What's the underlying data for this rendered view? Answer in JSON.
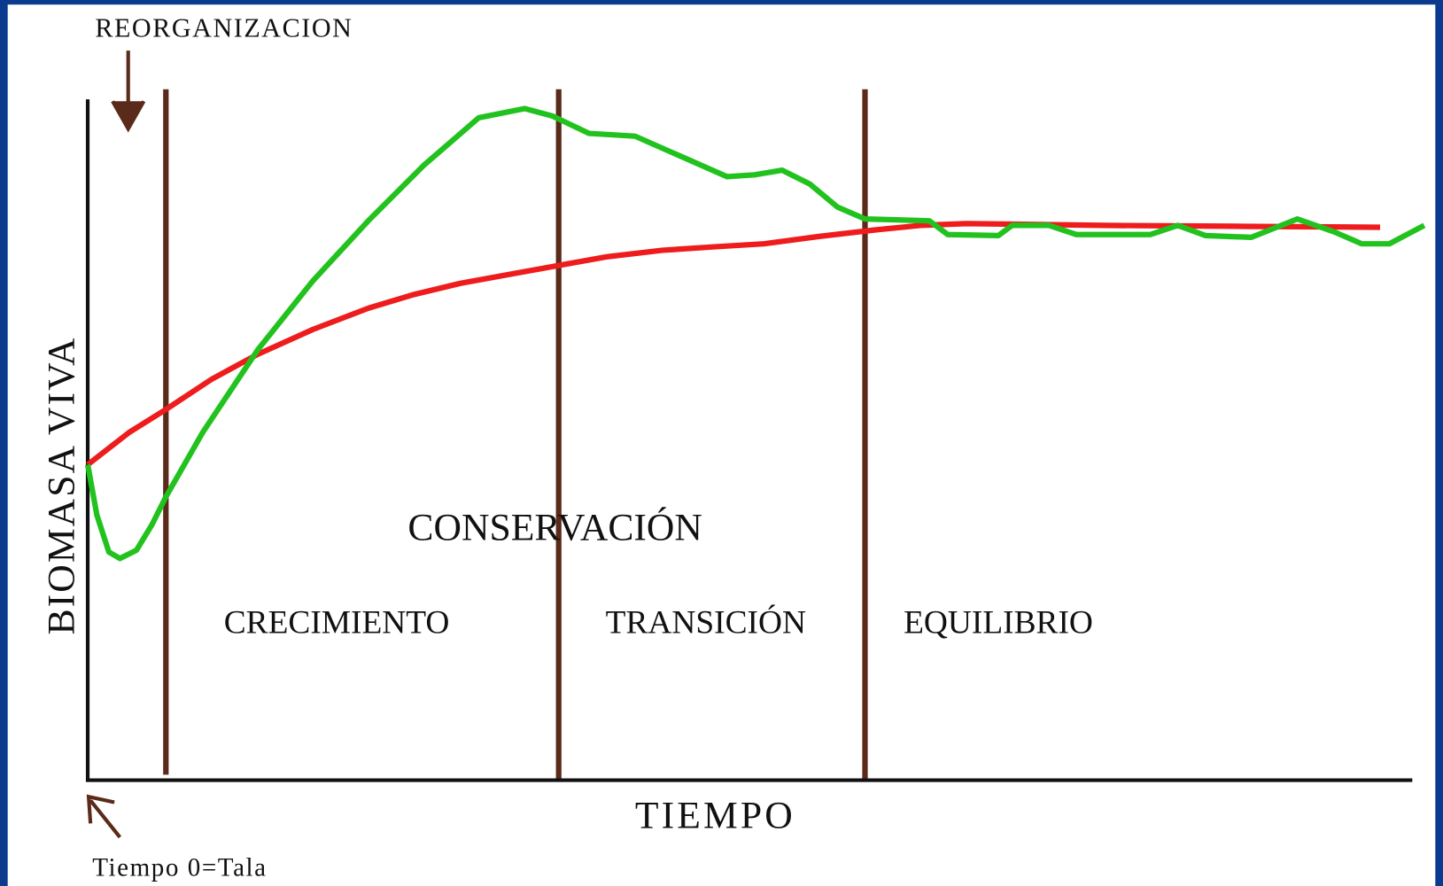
{
  "diagram": {
    "annotations": {
      "reorganization": "REORGANIZACION",
      "time_zero": "Tiempo 0=Tala"
    },
    "axes": {
      "y_label": "BIOMASA VIVA",
      "x_label": "TIEMPO"
    },
    "phases": {
      "conservation": "CONSERVACIÓN",
      "growth": "CRECIMIENTO",
      "transition": "TRANSICIÓN",
      "equilibrium": "EQUILIBRIO"
    }
  }
}
